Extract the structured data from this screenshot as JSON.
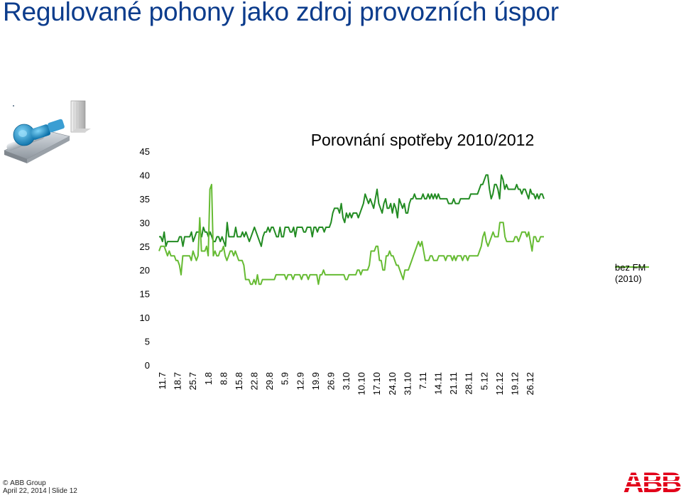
{
  "slide": {
    "title": "Regulované pohony jako zdroj provozních úspor"
  },
  "footer": {
    "copyright_symbol": "©",
    "company": "ABB Group",
    "date": "April 22, 2014",
    "slide_label": "Slide 12"
  },
  "logo": {
    "text": "ABB",
    "color": "#e2001a"
  },
  "colors": {
    "title": "#0c3c8c",
    "series_dark": "#228b22",
    "series_light": "#66bb33"
  },
  "icons": {
    "illustration": "pump-motor-icon"
  },
  "chart_data": {
    "type": "line",
    "title": "Porovnání spotřeby 2010/2012",
    "xlabel": "",
    "ylabel": "",
    "ylim": [
      0,
      45
    ],
    "yticks": [
      0,
      5,
      10,
      15,
      20,
      25,
      30,
      35,
      40,
      45
    ],
    "grid": false,
    "legend": "right",
    "x_tick_labels": [
      "11.7",
      "18.7",
      "25.7",
      "1.8",
      "8.8",
      "15.8",
      "22.8",
      "29.8",
      "5.9",
      "12.9",
      "19.9",
      "26.9",
      "3.10",
      "10.10",
      "17.10",
      "24.10",
      "31.10",
      "7.11",
      "14.11",
      "21.11",
      "28.11",
      "5.12",
      "12.12",
      "19.12",
      "26.12"
    ],
    "series": [
      {
        "name": "",
        "values": [
          27,
          27,
          26,
          28,
          25,
          26,
          26,
          26,
          26,
          26,
          26,
          26,
          27,
          27,
          25,
          27,
          27,
          27,
          27,
          28,
          26,
          27,
          28,
          28,
          28,
          27,
          29,
          28,
          28,
          27,
          28,
          27,
          26,
          26,
          27,
          27,
          26,
          27,
          26,
          25,
          30,
          27,
          27,
          27,
          27,
          29,
          27,
          27,
          27,
          28,
          27,
          28,
          27,
          26,
          27,
          28,
          29,
          28,
          27,
          26,
          25,
          27,
          28,
          28,
          29,
          28,
          29,
          29,
          28,
          27,
          27,
          29,
          27,
          27,
          29,
          29,
          29,
          28,
          28,
          29,
          27,
          29,
          29,
          29,
          29,
          28,
          28,
          29,
          29,
          29,
          27,
          29,
          29,
          28,
          29,
          29,
          29,
          28,
          29,
          29,
          29,
          30,
          32,
          33,
          33,
          33,
          32,
          34,
          31,
          30,
          32,
          31,
          32,
          31,
          32,
          32,
          32,
          31,
          32,
          33,
          34,
          36,
          35,
          34,
          35,
          34,
          33,
          35,
          37,
          34,
          33,
          32,
          34,
          35,
          33,
          33,
          34,
          32,
          34,
          33,
          31,
          35,
          34,
          33,
          34,
          32,
          32,
          34,
          35,
          35,
          36,
          35,
          35,
          35,
          35,
          36,
          35,
          35,
          36,
          35,
          36,
          35,
          36,
          35,
          36,
          35,
          35,
          35,
          35,
          35,
          34,
          34,
          34,
          35,
          34,
          34,
          34,
          35,
          35,
          35,
          35,
          35,
          35,
          36,
          36,
          36,
          36,
          36,
          37,
          38,
          38,
          39,
          40,
          40,
          37,
          35,
          36,
          38,
          38,
          37,
          35,
          40,
          39,
          37,
          38,
          37,
          37,
          37,
          37,
          37,
          38,
          37,
          37,
          36,
          37,
          37,
          36,
          35,
          37,
          36,
          36,
          35,
          36,
          35,
          36,
          36,
          35
        ]
      },
      {
        "name": "bez FM (2010)",
        "values": [
          24,
          25,
          25,
          25,
          24,
          23,
          24,
          23,
          23,
          23,
          22,
          22,
          21,
          19,
          23,
          23,
          23,
          23,
          23,
          22,
          24,
          23,
          22,
          23,
          31,
          24,
          24,
          24,
          25,
          23,
          37,
          38,
          23,
          24,
          23,
          23,
          24,
          24,
          25,
          23,
          22,
          23,
          24,
          24,
          23,
          24,
          23,
          22,
          22,
          22,
          21,
          18,
          18,
          18,
          17,
          17,
          18,
          17,
          19,
          17,
          17,
          18,
          18,
          18,
          18,
          18,
          18,
          18,
          18,
          19,
          19,
          19,
          19,
          19,
          19,
          18,
          19,
          19,
          19,
          18,
          19,
          19,
          19,
          19,
          18,
          19,
          19,
          19,
          18,
          19,
          19,
          19,
          19,
          19,
          17,
          19,
          19,
          20,
          19,
          19,
          19,
          19,
          19,
          19,
          19,
          19,
          19,
          19,
          19,
          19,
          18,
          18,
          19,
          19,
          19,
          19,
          19,
          20,
          20,
          19,
          20,
          20,
          20,
          20,
          21,
          24,
          24,
          24,
          25,
          25,
          22,
          22,
          20,
          20,
          23,
          23,
          24,
          23,
          23,
          22,
          21,
          21,
          20,
          19,
          18,
          20,
          20,
          20,
          21,
          22,
          23,
          24,
          25,
          26,
          25,
          26,
          24,
          22,
          22,
          22,
          23,
          23,
          22,
          22,
          22,
          23,
          23,
          23,
          23,
          22,
          23,
          23,
          23,
          22,
          23,
          22,
          23,
          23,
          23,
          22,
          23,
          23,
          22,
          23,
          23,
          23,
          23,
          23,
          23,
          24,
          25,
          27,
          28,
          26,
          25,
          26,
          27,
          28,
          27,
          27,
          27,
          30,
          30,
          30,
          27,
          26,
          26,
          26,
          26,
          26,
          27,
          27,
          26,
          27,
          28,
          28,
          28,
          27,
          28,
          26,
          24,
          27,
          27,
          26,
          26,
          27,
          27,
          27
        ]
      }
    ]
  }
}
